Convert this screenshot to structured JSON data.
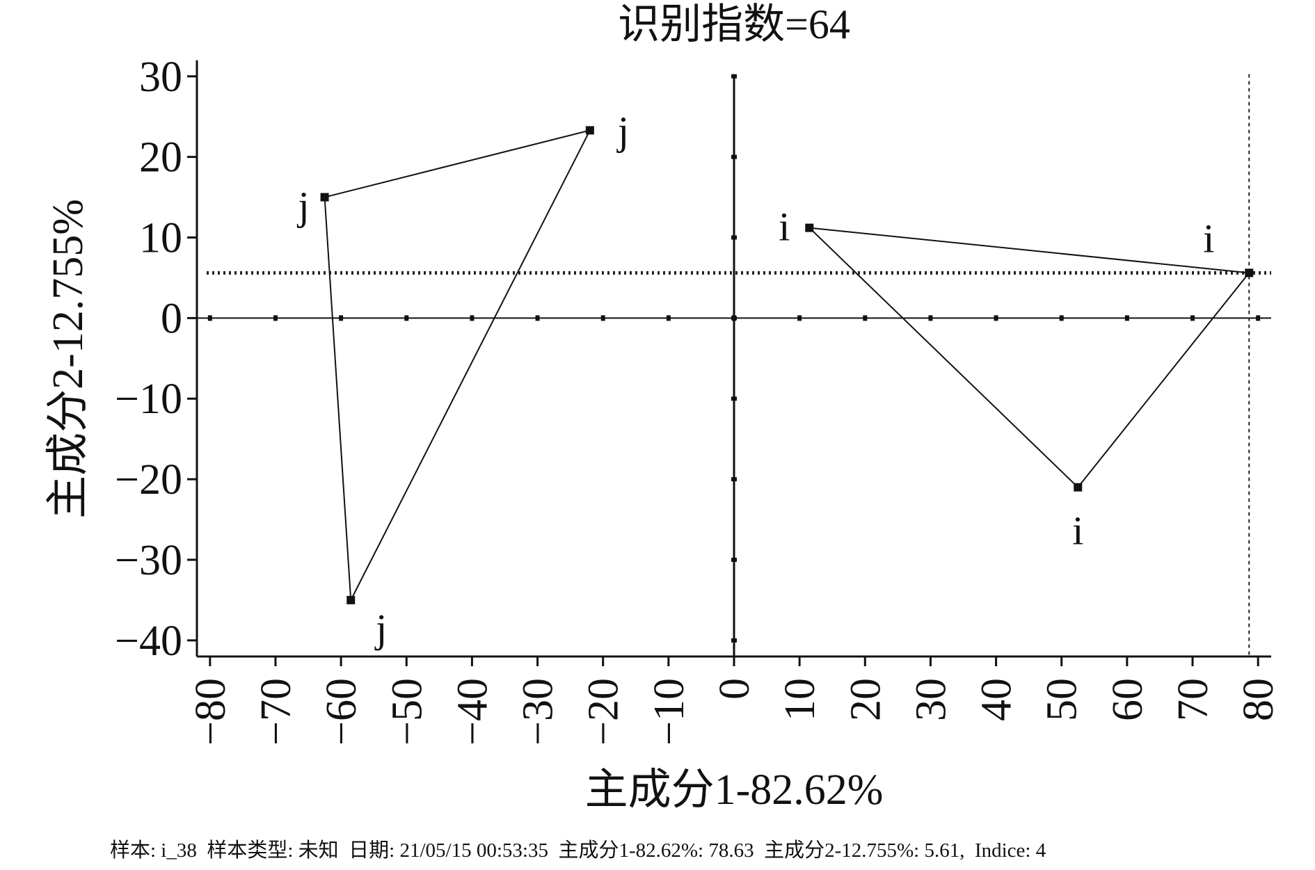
{
  "chart_data": {
    "type": "scatter",
    "title": "识别指数=64",
    "xlabel": "主成分1-82.62%",
    "ylabel": "主成分2-12.755%",
    "xlim": [
      -82,
      82
    ],
    "ylim": [
      -42,
      32
    ],
    "xticks": [
      {
        "value": -80,
        "label": "−80"
      },
      {
        "value": -70,
        "label": "−70"
      },
      {
        "value": -60,
        "label": "−60"
      },
      {
        "value": -50,
        "label": "−50"
      },
      {
        "value": -40,
        "label": "−40"
      },
      {
        "value": -30,
        "label": "−30"
      },
      {
        "value": -20,
        "label": "−20"
      },
      {
        "value": -10,
        "label": "−10"
      },
      0,
      10,
      20,
      30,
      40,
      50,
      60,
      70,
      80
    ],
    "yticks": [
      {
        "value": -40,
        "label": "−40"
      },
      {
        "value": -30,
        "label": "−30"
      },
      {
        "value": -20,
        "label": "−20"
      },
      {
        "value": -10,
        "label": "−10"
      },
      0,
      10,
      20,
      30
    ],
    "series": [
      {
        "name": "j",
        "color": "#111111",
        "x": [
          -62.5,
          -22,
          -58.5
        ],
        "y": [
          15,
          23.3,
          -35
        ]
      },
      {
        "name": "i",
        "color": "#111111",
        "x": [
          11.5,
          78.63,
          52.5
        ],
        "y": [
          11.2,
          5.61,
          -21
        ]
      }
    ],
    "crosshair": {
      "x": 78.63,
      "y": 5.61
    }
  },
  "status": "样本: i_38  样本类型: 未知  日期: 21/05/15 00:53:35  主成分1-82.62%: 78.63  主成分2-12.755%: 5.61,  Indice: 4"
}
